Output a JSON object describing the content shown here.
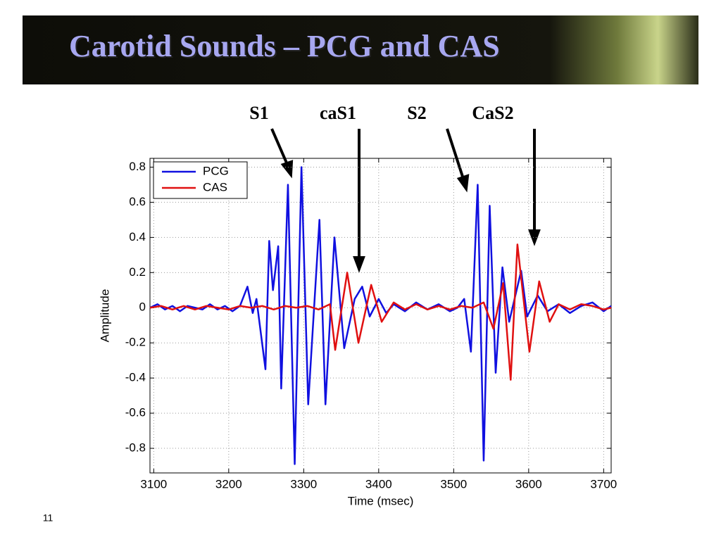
{
  "slide_title": "Carotid Sounds – PCG and CAS",
  "page_number": "11",
  "annotations": [
    "S1",
    "caS1",
    "S2",
    "CaS2"
  ],
  "chart_data": {
    "type": "line",
    "xlabel": "Time (msec)",
    "ylabel": "Amplitude",
    "xlim": [
      3095,
      3710
    ],
    "ylim": [
      -0.94,
      0.85
    ],
    "xticks": [
      3100,
      3200,
      3300,
      3400,
      3500,
      3600,
      3700
    ],
    "yticks": [
      -0.8,
      -0.6,
      -0.4,
      -0.2,
      0,
      0.2,
      0.4,
      0.6,
      0.8
    ],
    "grid": true,
    "legend": "upper left",
    "series": [
      {
        "name": "PCG",
        "color": "#1010e0",
        "x": [
          3095,
          3105,
          3115,
          3125,
          3135,
          3145,
          3155,
          3165,
          3175,
          3185,
          3195,
          3205,
          3215,
          3225,
          3232,
          3237,
          3249,
          3254,
          3259,
          3266,
          3270,
          3279,
          3288,
          3297,
          3306,
          3321,
          3329,
          3341,
          3354,
          3368,
          3378,
          3388,
          3400,
          3410,
          3420,
          3435,
          3450,
          3465,
          3480,
          3495,
          3505,
          3514,
          3523,
          3532,
          3540,
          3548,
          3556,
          3565,
          3574,
          3590,
          3598,
          3612,
          3625,
          3640,
          3655,
          3670,
          3685,
          3700,
          3710
        ],
        "values": [
          0.0,
          0.02,
          -0.01,
          0.01,
          -0.02,
          0.01,
          0.0,
          -0.01,
          0.02,
          -0.01,
          0.01,
          -0.02,
          0.01,
          0.12,
          -0.03,
          0.05,
          -0.35,
          0.38,
          0.1,
          0.35,
          -0.46,
          0.7,
          -0.89,
          0.8,
          -0.55,
          0.5,
          -0.55,
          0.4,
          -0.23,
          0.05,
          0.12,
          -0.05,
          0.05,
          -0.03,
          0.02,
          -0.02,
          0.03,
          -0.01,
          0.02,
          -0.02,
          0.0,
          0.05,
          -0.25,
          0.7,
          -0.87,
          0.58,
          -0.37,
          0.23,
          -0.08,
          0.21,
          -0.05,
          0.07,
          -0.02,
          0.02,
          -0.03,
          0.01,
          0.03,
          -0.02,
          0.01
        ]
      },
      {
        "name": "CAS",
        "color": "#e01010",
        "x": [
          3095,
          3110,
          3125,
          3140,
          3155,
          3170,
          3185,
          3200,
          3215,
          3230,
          3245,
          3260,
          3275,
          3290,
          3305,
          3320,
          3335,
          3342,
          3358,
          3373,
          3390,
          3404,
          3420,
          3435,
          3450,
          3465,
          3480,
          3495,
          3510,
          3525,
          3540,
          3553,
          3566,
          3576,
          3585,
          3601,
          3614,
          3628,
          3640,
          3655,
          3670,
          3685,
          3700,
          3710
        ],
        "values": [
          0.0,
          0.01,
          -0.01,
          0.01,
          -0.01,
          0.01,
          0.0,
          -0.01,
          0.01,
          0.0,
          0.01,
          -0.01,
          0.01,
          0.0,
          0.01,
          -0.01,
          0.02,
          -0.24,
          0.2,
          -0.2,
          0.13,
          -0.08,
          0.03,
          -0.01,
          0.02,
          -0.01,
          0.01,
          -0.01,
          0.01,
          0.0,
          0.03,
          -0.12,
          0.14,
          -0.41,
          0.36,
          -0.25,
          0.15,
          -0.08,
          0.02,
          -0.01,
          0.02,
          0.01,
          -0.01,
          0.0
        ]
      }
    ]
  }
}
